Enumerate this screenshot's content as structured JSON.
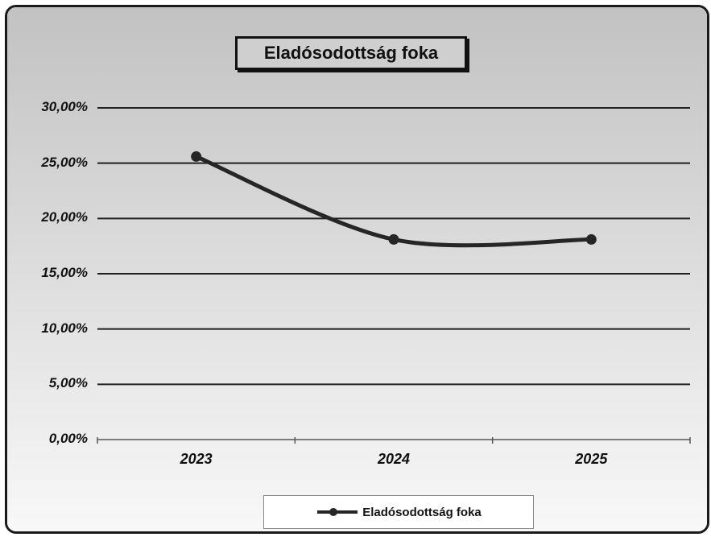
{
  "chart_data": {
    "type": "line",
    "title": "Eladósodottság foka",
    "categories": [
      "2023",
      "2024",
      "2025"
    ],
    "series": [
      {
        "name": "Eladósodottság foka",
        "values": [
          25.6,
          18.1,
          18.1
        ]
      }
    ],
    "ylim": [
      0,
      30
    ],
    "yticks": [
      0,
      5,
      10,
      15,
      20,
      25,
      30
    ],
    "ytick_labels": [
      "0,00%",
      "5,00%",
      "10,00%",
      "15,00%",
      "20,00%",
      "25,00%",
      "30,00%"
    ],
    "xlabel": "",
    "ylabel": "",
    "grid": true,
    "legend_position": "bottom",
    "colors": {
      "line": "#262626",
      "marker": "#262626",
      "plot_background_top": "#c2c2c2",
      "plot_background_bottom": "#f8f8f8"
    }
  }
}
